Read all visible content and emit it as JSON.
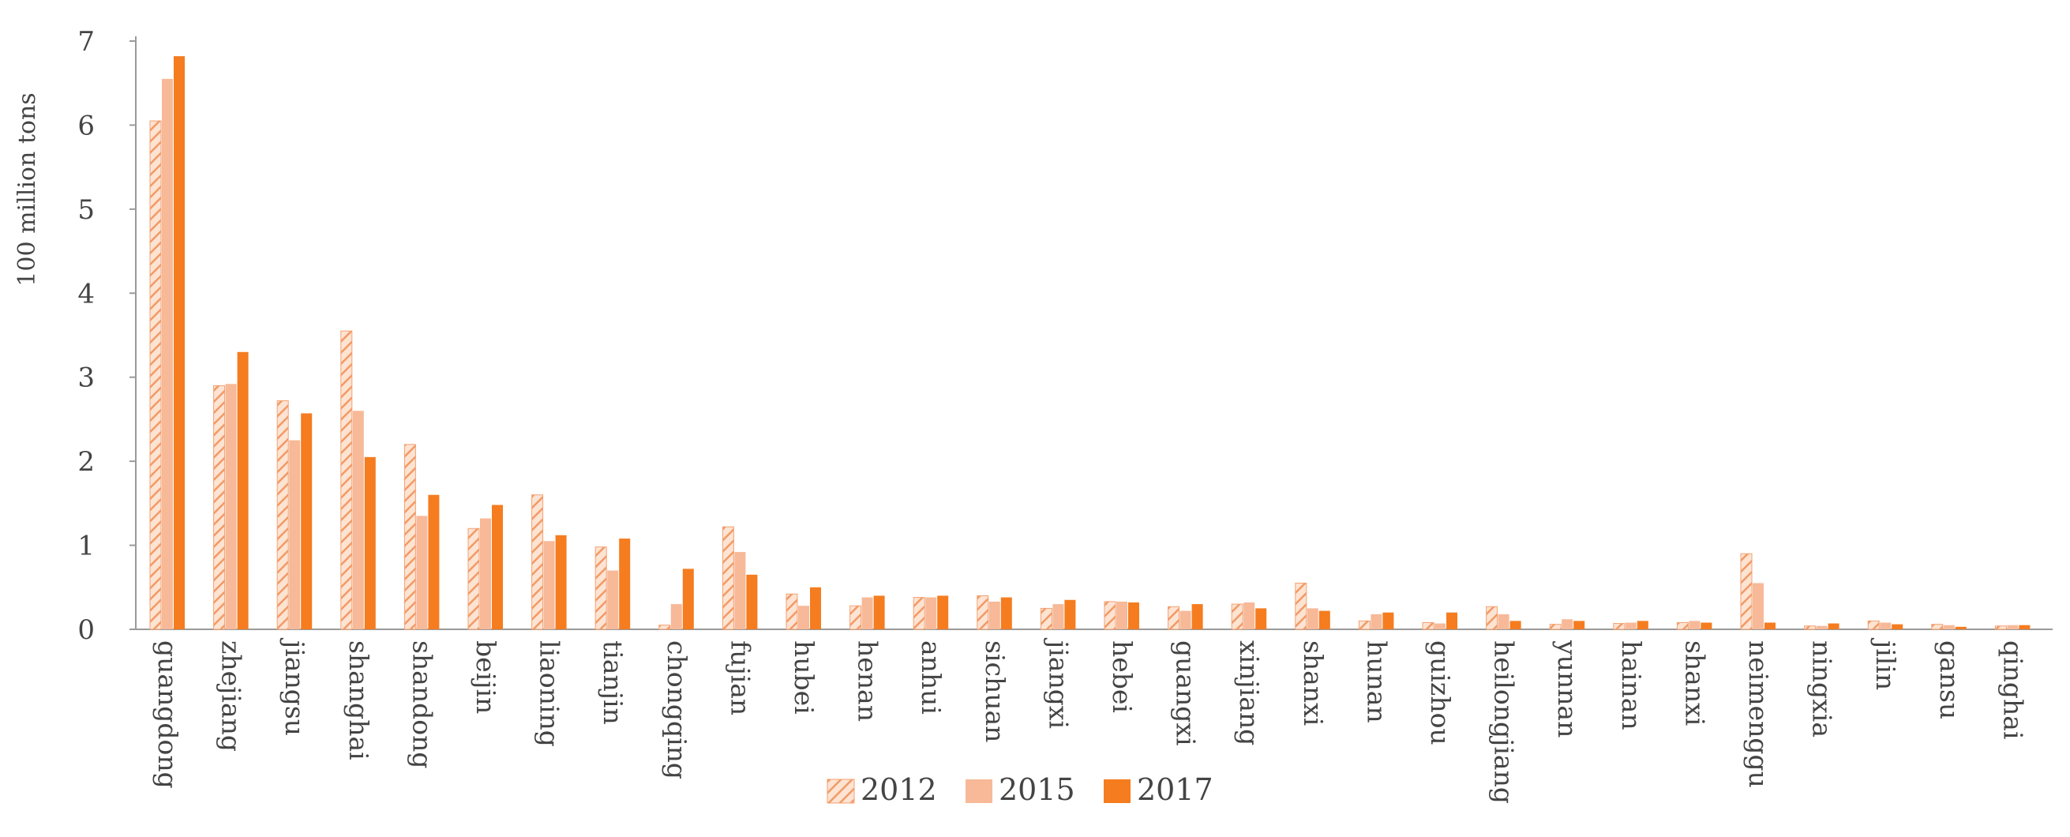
{
  "chart_data": {
    "type": "bar",
    "ylabel": "100 million tons",
    "xlabel": "",
    "title": "",
    "ylim": [
      0,
      7
    ],
    "yticks": [
      0,
      1,
      2,
      3,
      4,
      5,
      6,
      7
    ],
    "grid": false,
    "legend_position": "bottom-center",
    "categories": [
      "guangdong",
      "zhejiang",
      "jiangsu",
      "shanghai",
      "shandong",
      "beijin",
      "liaoning",
      "tianjin",
      "chongqing",
      "fujian",
      "hubei",
      "henan",
      "anhui",
      "sichuan",
      "jiangxi",
      "hebei",
      "guangxi",
      "xinjiang",
      "shanxi",
      "hunan",
      "guizhou",
      "heilongjiang",
      "yunnan",
      "hainan",
      "shanxi",
      "neimenggu",
      "ningxia",
      "jilin",
      "gansu",
      "qinghai"
    ],
    "series": [
      {
        "name": "2012",
        "pattern": "hatched",
        "color": "#f6a97c",
        "values": [
          6.05,
          2.9,
          2.72,
          3.55,
          2.2,
          1.2,
          1.6,
          0.98,
          0.05,
          1.22,
          0.42,
          0.28,
          0.38,
          0.4,
          0.25,
          0.33,
          0.27,
          0.3,
          0.55,
          0.1,
          0.08,
          0.27,
          0.06,
          0.07,
          0.08,
          0.9,
          0.04,
          0.1,
          0.06,
          0.04
        ]
      },
      {
        "name": "2015",
        "pattern": "solid-light",
        "color": "#f7b998",
        "values": [
          6.55,
          2.92,
          2.25,
          2.6,
          1.35,
          1.32,
          1.05,
          0.7,
          0.3,
          0.92,
          0.28,
          0.38,
          0.38,
          0.33,
          0.3,
          0.33,
          0.22,
          0.32,
          0.25,
          0.18,
          0.07,
          0.18,
          0.12,
          0.08,
          0.1,
          0.55,
          0.04,
          0.08,
          0.05,
          0.05
        ]
      },
      {
        "name": "2017",
        "pattern": "solid-dark",
        "color": "#f57c1f",
        "values": [
          6.82,
          3.3,
          2.57,
          2.05,
          1.6,
          1.48,
          1.12,
          1.08,
          0.72,
          0.65,
          0.5,
          0.4,
          0.4,
          0.38,
          0.35,
          0.32,
          0.3,
          0.25,
          0.22,
          0.2,
          0.2,
          0.1,
          0.1,
          0.1,
          0.08,
          0.08,
          0.07,
          0.06,
          0.03,
          0.05
        ]
      }
    ]
  }
}
